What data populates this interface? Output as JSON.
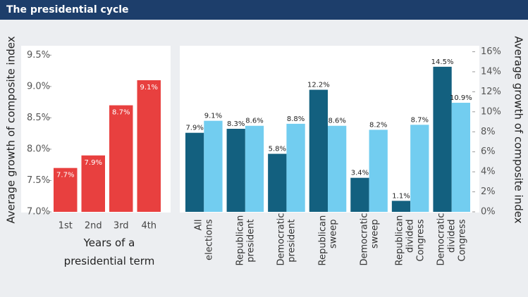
{
  "title": "The presidential cycle",
  "chart_data": [
    {
      "type": "bar",
      "y_label": "Average growth of composite index",
      "x_label": "Years of a presidential term",
      "categories": [
        "1st",
        "2nd",
        "3rd",
        "4th"
      ],
      "values": [
        7.7,
        7.9,
        8.7,
        9.1
      ],
      "value_labels": [
        "7.7%",
        "7.9%",
        "8.7%",
        "9.1%"
      ],
      "color": "#e8403f",
      "ylim": [
        7.0,
        9.65
      ],
      "yticks": [
        {
          "value": 7.0,
          "label": "7.0%"
        },
        {
          "value": 7.5,
          "label": "7.5%"
        },
        {
          "value": 8.0,
          "label": "8.0%"
        },
        {
          "value": 8.5,
          "label": "8.5%"
        },
        {
          "value": 9.0,
          "label": "9.0%"
        },
        {
          "value": 9.5,
          "label": "9.5%"
        }
      ]
    },
    {
      "type": "bar",
      "y_label": "Average growth of composite index",
      "categories": [
        "All elections",
        "Republican president",
        "Democratic president",
        "Republican sweep",
        "Democratic sweep",
        "Republican divided Congress",
        "Democratic divided Congress"
      ],
      "series": [
        {
          "color": "#13607f",
          "values": [
            7.9,
            8.3,
            5.8,
            12.2,
            3.4,
            1.1,
            14.5
          ],
          "value_labels": [
            "7.9%",
            "8.3%",
            "5.8%",
            "12.2%",
            "3.4%",
            "1.1%",
            "14.5%"
          ]
        },
        {
          "color": "#72cdf0",
          "values": [
            9.1,
            8.6,
            8.8,
            8.6,
            8.2,
            8.7,
            10.9
          ],
          "value_labels": [
            "9.1%",
            "8.6%",
            "8.8%",
            "8.6%",
            "8.2%",
            "8.7%",
            "10.9%"
          ]
        }
      ],
      "ylim": [
        0,
        16.6
      ],
      "yticks": [
        {
          "value": 0,
          "label": "0%"
        },
        {
          "value": 2,
          "label": "2%"
        },
        {
          "value": 4,
          "label": "4%"
        },
        {
          "value": 6,
          "label": "6%"
        },
        {
          "value": 8,
          "label": "8%"
        },
        {
          "value": 10,
          "label": "10%"
        },
        {
          "value": 12,
          "label": "12%"
        },
        {
          "value": 14,
          "label": "14%"
        },
        {
          "value": 16,
          "label": "16%"
        }
      ]
    }
  ]
}
